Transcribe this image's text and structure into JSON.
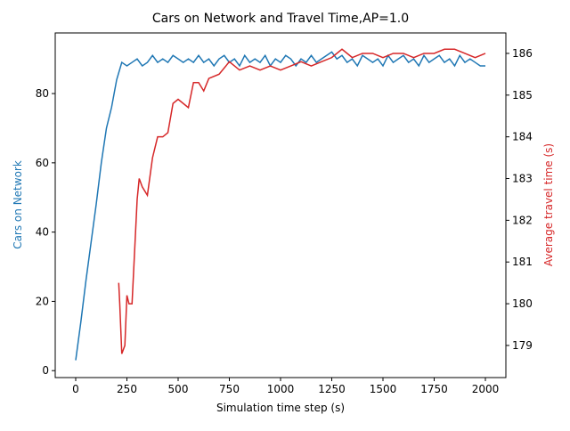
{
  "chart_data": {
    "type": "line",
    "title": "Cars on Network and Travel Time,AP=1.0",
    "x_label": "Simulation time step (s)",
    "y_label": "Cars on Network",
    "y2_label": "Average travel time (s)",
    "xlim": [
      -100,
      2100
    ],
    "xticks": [
      0,
      250,
      500,
      750,
      1000,
      1250,
      1500,
      1750,
      2000
    ],
    "ylim": [
      -2,
      97.5
    ],
    "yticks": [
      0,
      20,
      40,
      60,
      80
    ],
    "y2lim": [
      178.23,
      186.49
    ],
    "y2ticks": [
      179,
      180,
      181,
      182,
      183,
      184,
      185,
      186
    ],
    "grid": false,
    "series": [
      {
        "name": "Cars on Network",
        "color": "#1f77b4",
        "axis": "y",
        "x": [
          0,
          25,
          50,
          75,
          100,
          125,
          150,
          175,
          200,
          225,
          250,
          275,
          300,
          325,
          350,
          375,
          400,
          425,
          450,
          475,
          500,
          525,
          550,
          575,
          600,
          625,
          650,
          675,
          700,
          725,
          750,
          775,
          800,
          825,
          850,
          875,
          900,
          925,
          950,
          975,
          1000,
          1025,
          1050,
          1075,
          1100,
          1125,
          1150,
          1175,
          1200,
          1225,
          1250,
          1275,
          1300,
          1325,
          1350,
          1375,
          1400,
          1425,
          1450,
          1475,
          1500,
          1525,
          1550,
          1575,
          1600,
          1625,
          1650,
          1675,
          1700,
          1725,
          1750,
          1775,
          1800,
          1825,
          1850,
          1875,
          1900,
          1925,
          1950,
          1975,
          2000
        ],
        "values": [
          3,
          14,
          26,
          37,
          48,
          60,
          70,
          76,
          84,
          89,
          88,
          89,
          90,
          88,
          89,
          91,
          89,
          90,
          89,
          91,
          90,
          89,
          90,
          89,
          91,
          89,
          90,
          88,
          90,
          91,
          89,
          90,
          88,
          91,
          89,
          90,
          89,
          91,
          88,
          90,
          89,
          91,
          90,
          88,
          90,
          89,
          91,
          89,
          90,
          91,
          92,
          90,
          91,
          89,
          90,
          88,
          91,
          90,
          89,
          90,
          88,
          91,
          89,
          90,
          91,
          89,
          90,
          88,
          91,
          89,
          90,
          91,
          89,
          90,
          88,
          91,
          89,
          90,
          89,
          88,
          88
        ]
      },
      {
        "name": "Average travel time (s)",
        "color": "#d62728",
        "axis": "y2",
        "x": [
          210,
          215,
          225,
          240,
          250,
          260,
          275,
          290,
          300,
          310,
          325,
          350,
          375,
          400,
          425,
          450,
          475,
          500,
          550,
          575,
          600,
          625,
          650,
          700,
          750,
          800,
          850,
          900,
          950,
          1000,
          1050,
          1100,
          1150,
          1200,
          1250,
          1300,
          1350,
          1400,
          1450,
          1500,
          1550,
          1600,
          1650,
          1700,
          1750,
          1800,
          1850,
          1900,
          1950,
          2000
        ],
        "values": [
          180.5,
          180.0,
          178.8,
          179.0,
          180.2,
          180.0,
          180.0,
          181.5,
          182.5,
          183.0,
          182.8,
          182.6,
          183.5,
          184.0,
          184.0,
          184.1,
          184.8,
          184.9,
          184.7,
          185.3,
          185.3,
          185.1,
          185.4,
          185.5,
          185.8,
          185.6,
          185.7,
          185.6,
          185.7,
          185.6,
          185.7,
          185.8,
          185.7,
          185.8,
          185.9,
          186.1,
          185.9,
          186.0,
          186.0,
          185.9,
          186.0,
          186.0,
          185.9,
          186.0,
          186.0,
          186.1,
          186.1,
          186.0,
          185.9,
          186.0
        ]
      }
    ]
  }
}
